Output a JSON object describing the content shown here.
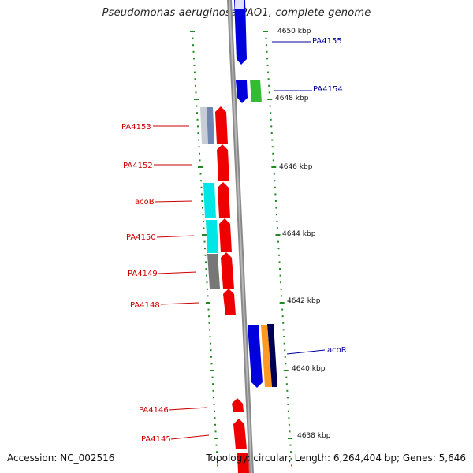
{
  "title": "Pseudomonas aeruginosa PAO1, complete genome",
  "footer": {
    "accession": "Accession: NC_002516",
    "topology": "Topology: circular; Length: 6,264,404 bp; Genes: 5,646"
  },
  "colors": {
    "backbone": "#8a8a8a",
    "tick": "#1f8a1f",
    "left_label": "#cc0000",
    "right_label": "#000099",
    "red": "#ee0000",
    "blue": "#0000dd",
    "green": "#33bb33",
    "cyan": "#00e5e5",
    "gray": "#777777",
    "lightgray": "#aab4c8",
    "orange": "#ff9922",
    "navy": "#000055"
  },
  "scale_labels": [
    "4650 kbp",
    "4648 kbp",
    "4646 kbp",
    "4644 kbp",
    "4642 kbp",
    "4640 kbp",
    "4638 kbp"
  ],
  "left_labels": [
    "PA4153",
    "PA4152",
    "acoB",
    "PA4150",
    "PA4149",
    "PA4148",
    "PA4146",
    "PA4145"
  ],
  "right_labels": [
    "PA4155",
    "PA4154",
    "acoR"
  ]
}
